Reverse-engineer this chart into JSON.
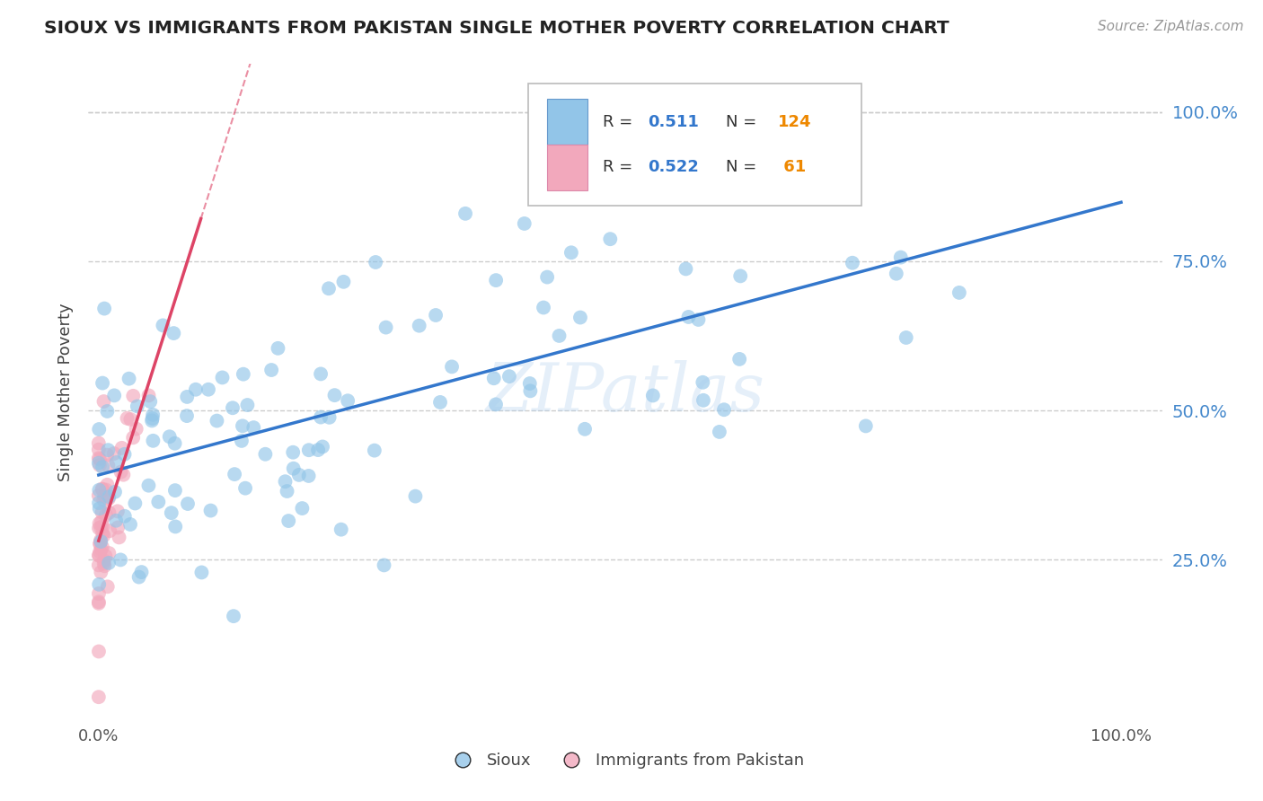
{
  "title": "SIOUX VS IMMIGRANTS FROM PAKISTAN SINGLE MOTHER POVERTY CORRELATION CHART",
  "source": "Source: ZipAtlas.com",
  "ylabel": "Single Mother Poverty",
  "color_sioux": "#92C5E8",
  "color_pakistan": "#F2A8BC",
  "color_line_sioux": "#3377CC",
  "color_line_pakistan": "#DD4466",
  "watermark": "ZIPatlas",
  "ytick_positions": [
    0.25,
    0.5,
    0.75,
    1.0
  ],
  "ytick_labels": [
    "25.0%",
    "50.0%",
    "75.0%",
    "100.0%"
  ],
  "xtick_positions": [
    0.0,
    1.0
  ],
  "xtick_labels": [
    "0.0%",
    "100.0%"
  ],
  "legend_r1": "R = ",
  "legend_v1": "0.511",
  "legend_n1_label": "N =",
  "legend_n1_val": "124",
  "legend_r2": "R = ",
  "legend_v2": "0.522",
  "legend_n2_label": "N =",
  "legend_n2_val": " 61",
  "sioux_seed": 99,
  "pak_seed": 77
}
